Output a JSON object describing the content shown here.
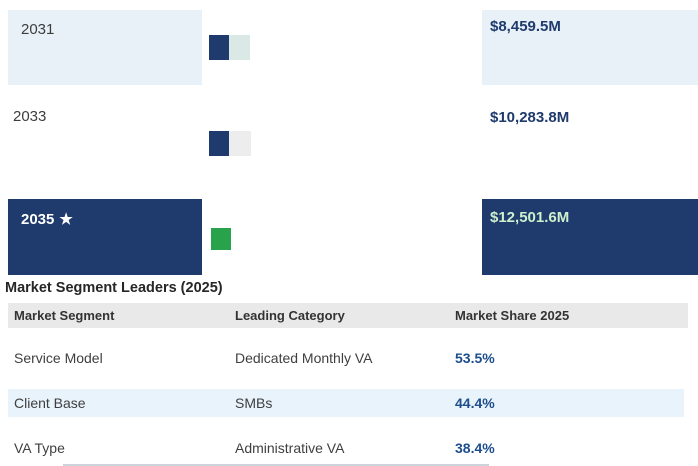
{
  "colors": {
    "navy": "#1f3a6c",
    "box_light": "#e8f1f8",
    "green": "#28a34c",
    "money_green": "#cdf0cd",
    "percent_blue": "#1d4d8c",
    "header_gray": "#e9e9e9",
    "stripe_blue": "#e9f3fb",
    "text_dark": "#3d3d3d",
    "strip_edge": "#ccd3da"
  },
  "projection": {
    "rows": [
      {
        "year": "2031",
        "value": "$8,459.5M",
        "bar_segments": [
          {
            "name": "filled",
            "color": "#1f3a6c",
            "width": 20
          },
          {
            "name": "remainder",
            "color": "#dae8e6",
            "width": 21
          }
        ]
      },
      {
        "year": "2033",
        "value": "$10,283.8M",
        "bar_segments": [
          {
            "name": "filled",
            "color": "#1f3a6c",
            "width": 20
          },
          {
            "name": "remainder",
            "color": "#ededed",
            "width": 22
          }
        ]
      },
      {
        "year": "2035",
        "star": "★",
        "value": "$12,501.6M",
        "bar_segments": [
          {
            "name": "filled",
            "color": "#28a34c",
            "width": 20
          }
        ]
      }
    ]
  },
  "segment_table": {
    "title": "Market Segment Leaders (2025)",
    "columns": [
      "Market Segment",
      "Leading Category",
      "Market Share 2025"
    ],
    "rows": [
      [
        "Service Model",
        "Dedicated Monthly VA",
        "53.5%"
      ],
      [
        "Client Base",
        "SMBs",
        "44.4%"
      ],
      [
        "VA Type",
        "Administrative VA",
        "38.4%"
      ]
    ]
  },
  "chart_data": [
    {
      "type": "bar",
      "title": "",
      "categories": [
        "2031",
        "2033",
        "2035"
      ],
      "values": [
        8459.5,
        10283.8,
        12501.6
      ],
      "value_labels": [
        "$8,459.5M",
        "$10,283.8M",
        "$12,501.6M"
      ],
      "unit": "$M",
      "highlighted_category": "2035"
    },
    {
      "type": "table",
      "title": "Market Segment Leaders (2025)",
      "columns": [
        "Market Segment",
        "Leading Category",
        "Market Share 2025"
      ],
      "rows": [
        [
          "Service Model",
          "Dedicated Monthly VA",
          "53.5%"
        ],
        [
          "Client Base",
          "SMBs",
          "44.4%"
        ],
        [
          "VA Type",
          "Administrative VA",
          "38.4%"
        ]
      ]
    }
  ]
}
